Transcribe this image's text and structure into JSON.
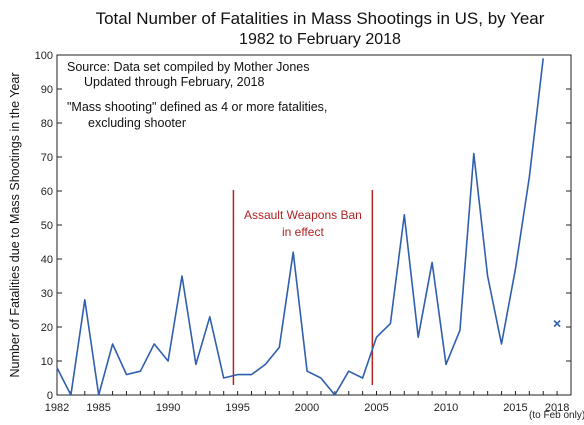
{
  "chart_data": {
    "type": "line",
    "title": "Total Number of Fatalities in Mass Shootings in US, by Year",
    "subtitle": "1982 to February 2018",
    "ylabel": "Number of Fatalities due to Mass Shootings in the Year",
    "xlabel": "",
    "xlim": [
      1982,
      2019
    ],
    "ylim": [
      0,
      100
    ],
    "x_ticks": [
      1982,
      1985,
      1990,
      1995,
      2000,
      2005,
      2010,
      2015,
      2018
    ],
    "y_ticks": [
      0,
      10,
      20,
      30,
      40,
      50,
      60,
      70,
      80,
      90,
      100
    ],
    "x_tick_note": "(to Feb only)",
    "grid": false,
    "line_color": "#2f5fad",
    "annotation_color": "#b22222",
    "series": [
      {
        "x": [
          1982,
          1983,
          1984,
          1985,
          1986,
          1987,
          1988,
          1989,
          1990,
          1991,
          1992,
          1993,
          1994,
          1995,
          1996,
          1997,
          1998,
          1999,
          2000,
          2001,
          2002,
          2003,
          2004,
          2005,
          2006,
          2007,
          2008,
          2009,
          2010,
          2011,
          2012,
          2013,
          2014,
          2015,
          2016,
          2017
        ],
        "values": [
          8,
          0,
          28,
          0,
          15,
          6,
          7,
          15,
          10,
          35,
          9,
          23,
          5,
          6,
          6,
          9,
          14,
          42,
          7,
          5,
          0,
          7,
          5,
          17,
          21,
          53,
          17,
          39,
          9,
          19,
          71,
          35,
          15,
          37,
          64,
          99
        ]
      }
    ],
    "partial_year_point": {
      "x": 2018,
      "y": 21,
      "marker": "x"
    },
    "notes": [
      "Source:  Data set compiled by Mother Jones",
      "Updated through February, 2018",
      "\"Mass shooting\" defined as 4 or more fatalities,",
      "excluding shooter"
    ],
    "ban_annotation": {
      "label_line1": "Assault Weapons Ban",
      "label_line2": "in effect",
      "start_x": 1994.7,
      "end_x": 2004.7
    }
  }
}
